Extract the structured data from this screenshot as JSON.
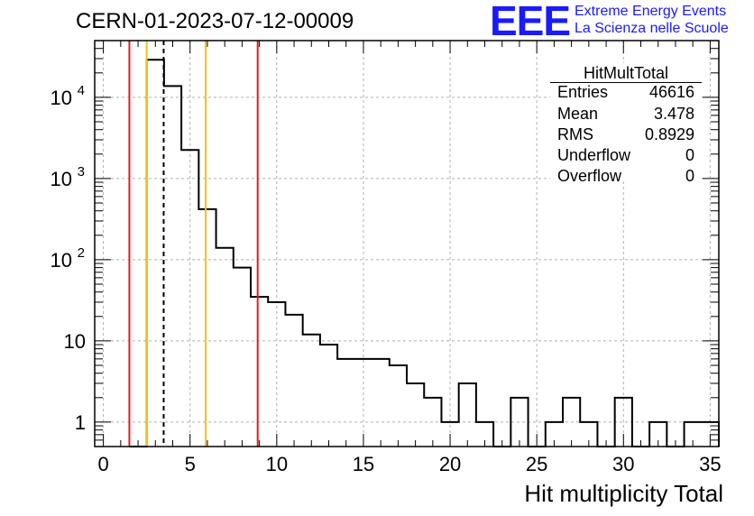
{
  "title": "CERN-01-2023-07-12-00009",
  "logo": {
    "letters": "EEE",
    "line1": "Extreme Energy Events",
    "line2": "La Scienza nelle Scuole"
  },
  "stats": {
    "title": "HitMultTotal",
    "rows": [
      {
        "label": "Entries",
        "value": "46616"
      },
      {
        "label": "Mean",
        "value": "3.478"
      },
      {
        "label": "RMS",
        "value": "0.8929"
      },
      {
        "label": "Underflow",
        "value": "0"
      },
      {
        "label": "Overflow",
        "value": "0"
      }
    ]
  },
  "chart_data": {
    "type": "histogram",
    "xlabel": "Hit multiplicity Total",
    "ylabel": "",
    "xlim": [
      -0.5,
      35.5
    ],
    "ylim": [
      0.5,
      50000
    ],
    "yscale": "log",
    "grid": true,
    "x_ticks": [
      0,
      5,
      10,
      15,
      20,
      25,
      30,
      35
    ],
    "y_ticks": [
      {
        "value": 1,
        "base": "1",
        "exp": ""
      },
      {
        "value": 10,
        "base": "10",
        "exp": ""
      },
      {
        "value": 100,
        "base": "10",
        "exp": "2"
      },
      {
        "value": 1000,
        "base": "10",
        "exp": "3"
      },
      {
        "value": 10000,
        "base": "10",
        "exp": "4"
      }
    ],
    "bin_width": 1,
    "bin_centers": [
      2,
      3,
      4,
      5,
      6,
      7,
      8,
      9,
      10,
      11,
      12,
      13,
      14,
      15,
      16,
      17,
      18,
      19,
      20,
      21,
      22,
      23,
      24,
      25,
      26,
      27,
      28,
      29,
      30,
      31,
      32,
      33,
      34,
      35
    ],
    "counts": [
      0,
      29000,
      13800,
      2250,
      420,
      140,
      80,
      35,
      30,
      21,
      12,
      9,
      6,
      6,
      6,
      5,
      3,
      2,
      1,
      3,
      1,
      0,
      2,
      0,
      1,
      2,
      1,
      0,
      2,
      0,
      1,
      0,
      1,
      1
    ],
    "vertical_lines": [
      {
        "x": 1.5,
        "color": "#e51a1a",
        "style": "solid"
      },
      {
        "x": 2.5,
        "color": "#f2c40f",
        "style": "solid"
      },
      {
        "x": 3.478,
        "color": "#000000",
        "style": "dashed"
      },
      {
        "x": 5.9,
        "color": "#f2c40f",
        "style": "solid"
      },
      {
        "x": 8.9,
        "color": "#e51a1a",
        "style": "solid"
      }
    ]
  }
}
